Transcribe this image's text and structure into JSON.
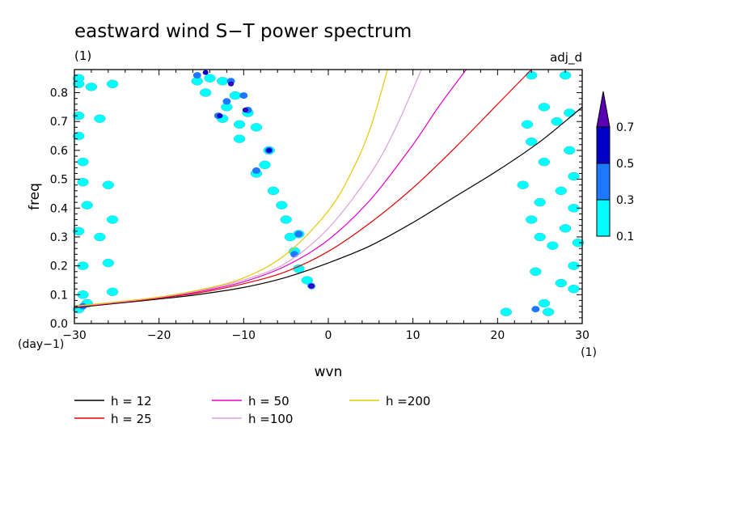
{
  "chart_data": {
    "type": "heatmap",
    "title": "eastward wind S−T power spectrum",
    "subtitle_left": "(1)",
    "subtitle_right": "adj_d",
    "xlabel": "wvn",
    "ylabel": "freq",
    "x_unit": "(1)",
    "y_unit": "(day−1)",
    "xlim": [
      -30,
      30
    ],
    "ylim": [
      0,
      0.88
    ],
    "x_ticks": [
      -30,
      -20,
      -10,
      0,
      10,
      20,
      30
    ],
    "x_tick_labels": [
      "−30",
      "−20",
      "−10",
      "0",
      "10",
      "20",
      "30"
    ],
    "y_ticks": [
      0,
      0.1,
      0.2,
      0.3,
      0.4,
      0.5,
      0.6,
      0.7,
      0.8
    ],
    "y_tick_labels": [
      "0.0",
      "0.1",
      "0.2",
      "0.3",
      "0.4",
      "0.5",
      "0.6",
      "0.7",
      "0.8"
    ],
    "grid": false,
    "colorbar": {
      "levels": [
        0.1,
        0.3,
        0.5,
        0.7
      ],
      "labels": [
        "0.1",
        "0.3",
        "0.5",
        "0.7"
      ],
      "colors": [
        "#00ffff",
        "#1e78ff",
        "#0000c8",
        "#5a00b4"
      ]
    },
    "contour_regions": [
      {
        "x": -29.5,
        "y": 0.83,
        "level": 0
      },
      {
        "x": -28,
        "y": 0.82,
        "level": 0
      },
      {
        "x": -25.5,
        "y": 0.83,
        "level": 0
      },
      {
        "x": -29.5,
        "y": 0.72,
        "level": 0
      },
      {
        "x": -27,
        "y": 0.71,
        "level": 0
      },
      {
        "x": -29.5,
        "y": 0.65,
        "level": 0
      },
      {
        "x": -29,
        "y": 0.56,
        "level": 0
      },
      {
        "x": -29,
        "y": 0.49,
        "level": 0
      },
      {
        "x": -26,
        "y": 0.48,
        "level": 0
      },
      {
        "x": -28.5,
        "y": 0.41,
        "level": 0
      },
      {
        "x": -29.5,
        "y": 0.32,
        "level": 0
      },
      {
        "x": -27,
        "y": 0.3,
        "level": 0
      },
      {
        "x": -29,
        "y": 0.2,
        "level": 0
      },
      {
        "x": -26,
        "y": 0.21,
        "level": 0
      },
      {
        "x": -29,
        "y": 0.1,
        "level": 0
      },
      {
        "x": -25.5,
        "y": 0.11,
        "level": 0
      },
      {
        "x": -28.5,
        "y": 0.07,
        "level": 0
      },
      {
        "x": -29.5,
        "y": 0.05,
        "level": 0
      },
      {
        "x": -25.5,
        "y": 0.36,
        "level": 0
      },
      {
        "x": -29.5,
        "y": 0.85,
        "level": 0
      },
      {
        "x": -15.5,
        "y": 0.84,
        "level": 0
      },
      {
        "x": -14,
        "y": 0.85,
        "level": 0
      },
      {
        "x": -12.5,
        "y": 0.84,
        "level": 0
      },
      {
        "x": -14.5,
        "y": 0.8,
        "level": 0
      },
      {
        "x": -11,
        "y": 0.79,
        "level": 0
      },
      {
        "x": -12,
        "y": 0.75,
        "level": 0
      },
      {
        "x": -9.5,
        "y": 0.73,
        "level": 0
      },
      {
        "x": -12.5,
        "y": 0.71,
        "level": 0
      },
      {
        "x": -10.5,
        "y": 0.69,
        "level": 0
      },
      {
        "x": -8.5,
        "y": 0.68,
        "level": 0
      },
      {
        "x": -10.5,
        "y": 0.64,
        "level": 0
      },
      {
        "x": -7,
        "y": 0.6,
        "level": 0
      },
      {
        "x": -7.5,
        "y": 0.55,
        "level": 0
      },
      {
        "x": -8.5,
        "y": 0.52,
        "level": 0
      },
      {
        "x": -6.5,
        "y": 0.46,
        "level": 0
      },
      {
        "x": -5.5,
        "y": 0.41,
        "level": 0
      },
      {
        "x": -5,
        "y": 0.36,
        "level": 0
      },
      {
        "x": -3.5,
        "y": 0.31,
        "level": 0
      },
      {
        "x": -4.5,
        "y": 0.3,
        "level": 0
      },
      {
        "x": -4,
        "y": 0.25,
        "level": 0
      },
      {
        "x": -3.5,
        "y": 0.19,
        "level": 0
      },
      {
        "x": -2.5,
        "y": 0.15,
        "level": 0
      },
      {
        "x": 24,
        "y": 0.86,
        "level": 0
      },
      {
        "x": 28,
        "y": 0.86,
        "level": 0
      },
      {
        "x": 25.5,
        "y": 0.75,
        "level": 0
      },
      {
        "x": 28.5,
        "y": 0.73,
        "level": 0
      },
      {
        "x": 27,
        "y": 0.7,
        "level": 0
      },
      {
        "x": 23.5,
        "y": 0.69,
        "level": 0
      },
      {
        "x": 24,
        "y": 0.63,
        "level": 0
      },
      {
        "x": 28.5,
        "y": 0.6,
        "level": 0
      },
      {
        "x": 25.5,
        "y": 0.56,
        "level": 0
      },
      {
        "x": 29,
        "y": 0.51,
        "level": 0
      },
      {
        "x": 23,
        "y": 0.48,
        "level": 0
      },
      {
        "x": 27.5,
        "y": 0.46,
        "level": 0
      },
      {
        "x": 25,
        "y": 0.42,
        "level": 0
      },
      {
        "x": 29,
        "y": 0.4,
        "level": 0
      },
      {
        "x": 24,
        "y": 0.36,
        "level": 0
      },
      {
        "x": 28,
        "y": 0.33,
        "level": 0
      },
      {
        "x": 25,
        "y": 0.3,
        "level": 0
      },
      {
        "x": 26.5,
        "y": 0.27,
        "level": 0
      },
      {
        "x": 29,
        "y": 0.2,
        "level": 0
      },
      {
        "x": 24.5,
        "y": 0.18,
        "level": 0
      },
      {
        "x": 27.5,
        "y": 0.14,
        "level": 0
      },
      {
        "x": 29,
        "y": 0.12,
        "level": 0
      },
      {
        "x": 25.5,
        "y": 0.07,
        "level": 0
      },
      {
        "x": 26,
        "y": 0.04,
        "level": 0
      },
      {
        "x": 21,
        "y": 0.04,
        "level": 0
      },
      {
        "x": 29.5,
        "y": 0.28,
        "level": 0
      },
      {
        "x": -15.5,
        "y": 0.86,
        "level": 1
      },
      {
        "x": -11.5,
        "y": 0.84,
        "level": 1
      },
      {
        "x": -10,
        "y": 0.79,
        "level": 1
      },
      {
        "x": -12,
        "y": 0.77,
        "level": 1
      },
      {
        "x": -13,
        "y": 0.72,
        "level": 1
      },
      {
        "x": -9.5,
        "y": 0.74,
        "level": 1
      },
      {
        "x": -7,
        "y": 0.6,
        "level": 1
      },
      {
        "x": -8.5,
        "y": 0.53,
        "level": 1
      },
      {
        "x": -2,
        "y": 0.13,
        "level": 1
      },
      {
        "x": -4,
        "y": 0.24,
        "level": 1
      },
      {
        "x": -3.5,
        "y": 0.31,
        "level": 1
      },
      {
        "x": 24.5,
        "y": 0.05,
        "level": 1
      },
      {
        "x": -29,
        "y": 0.06,
        "level": 1
      },
      {
        "x": -11.5,
        "y": 0.83,
        "level": 2
      },
      {
        "x": -9.8,
        "y": 0.74,
        "level": 2
      },
      {
        "x": -12.8,
        "y": 0.72,
        "level": 2
      },
      {
        "x": -7,
        "y": 0.6,
        "level": 2
      },
      {
        "x": -2,
        "y": 0.13,
        "level": 2
      },
      {
        "x": -14.5,
        "y": 0.87,
        "level": 2
      },
      {
        "x": -11.5,
        "y": 0.83,
        "level": 3
      },
      {
        "x": -9.8,
        "y": 0.74,
        "level": 3
      },
      {
        "x": -2,
        "y": 0.13,
        "level": 3
      }
    ],
    "series": [
      {
        "name": "h = 12",
        "color": "#000000",
        "x": [
          -30,
          -25,
          -20,
          -15,
          -10,
          -5,
          0,
          5,
          10,
          15,
          20,
          25,
          30
        ],
        "y": [
          0.055,
          0.07,
          0.085,
          0.102,
          0.125,
          0.16,
          0.21,
          0.27,
          0.35,
          0.44,
          0.53,
          0.63,
          0.75
        ]
      },
      {
        "name": "h = 25",
        "color": "#e60000",
        "x": [
          -30,
          -25,
          -20,
          -15,
          -10,
          -5,
          0,
          5,
          10,
          15,
          20,
          24
        ],
        "y": [
          0.057,
          0.072,
          0.088,
          0.108,
          0.138,
          0.18,
          0.25,
          0.35,
          0.47,
          0.61,
          0.76,
          0.88
        ]
      },
      {
        "name": "h = 50",
        "color": "#e600c8",
        "x": [
          -30,
          -25,
          -20,
          -15,
          -10,
          -5,
          0,
          5,
          10,
          13,
          16.3
        ],
        "y": [
          0.058,
          0.073,
          0.09,
          0.112,
          0.145,
          0.2,
          0.29,
          0.43,
          0.62,
          0.75,
          0.88
        ]
      },
      {
        "name": "h =100",
        "color": "#dca0dc",
        "x": [
          -30,
          -25,
          -20,
          -15,
          -10,
          -5,
          0,
          5,
          8,
          11
        ],
        "y": [
          0.059,
          0.074,
          0.091,
          0.115,
          0.151,
          0.21,
          0.33,
          0.52,
          0.68,
          0.88
        ]
      },
      {
        "name": "h =200",
        "color": "#e6c800",
        "x": [
          -30,
          -25,
          -20,
          -15,
          -10,
          -5,
          0,
          3,
          5,
          7
        ],
        "y": [
          0.06,
          0.075,
          0.092,
          0.118,
          0.158,
          0.24,
          0.39,
          0.54,
          0.68,
          0.88
        ]
      }
    ],
    "legend_placement": "bottom"
  }
}
